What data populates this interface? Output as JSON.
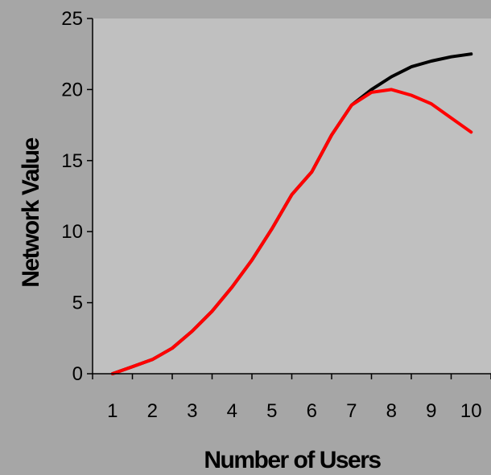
{
  "chart_data": {
    "type": "line",
    "title": "",
    "xlabel": "Number of Users",
    "ylabel": "Network Value",
    "x_categories": [
      "1",
      "2",
      "3",
      "4",
      "5",
      "6",
      "7",
      "8",
      "9",
      "10"
    ],
    "xlim": [
      0.5,
      10.5
    ],
    "ylim": [
      0,
      25
    ],
    "y_ticks": [
      0,
      5,
      10,
      15,
      20,
      25
    ],
    "grid": false,
    "legend": "none",
    "background_color": "#a6a6a6",
    "plot_area_color": "#c0c0c0",
    "series": [
      {
        "color": "#000000",
        "x": [
          1,
          1.5,
          2,
          2.5,
          3,
          3.5,
          4,
          4.5,
          5,
          5.5,
          6,
          6.5,
          7,
          7.5,
          8,
          8.5,
          9,
          9.5,
          10
        ],
        "values": [
          0,
          0.5,
          1,
          1.8,
          3,
          4.4,
          6.1,
          8,
          10.2,
          12.6,
          14.2,
          16.8,
          18.9,
          20,
          20.9,
          21.6,
          22,
          22.3,
          22.5
        ]
      },
      {
        "color": "#ff0000",
        "x": [
          1,
          1.5,
          2,
          2.5,
          3,
          3.5,
          4,
          4.5,
          5,
          5.5,
          6,
          6.5,
          7,
          7.5,
          8,
          8.5,
          9,
          9.5,
          10
        ],
        "values": [
          0,
          0.5,
          1,
          1.8,
          3,
          4.4,
          6.1,
          8,
          10.2,
          12.6,
          14.2,
          16.8,
          18.9,
          19.8,
          20,
          19.6,
          19,
          18,
          17
        ]
      }
    ]
  }
}
